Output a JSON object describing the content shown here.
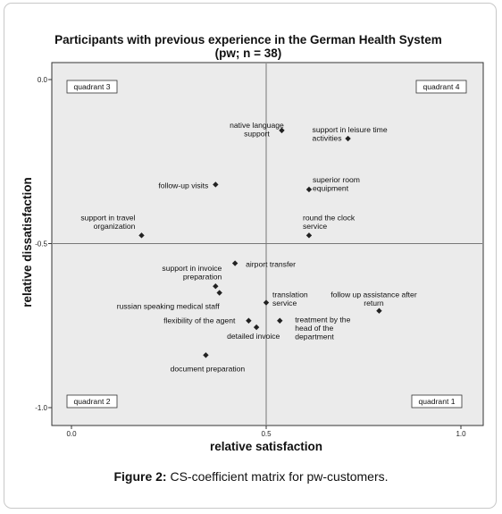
{
  "caption": {
    "label": "Figure 2:",
    "text": "CS-coefficient matrix for pw-customers."
  },
  "chart_data": {
    "type": "scatter",
    "title": "Participants with previous experience in the German Health System",
    "subtitle": "(pw; n = 38)",
    "xlabel": "relative satisfaction",
    "ylabel": "relative dissatisfaction",
    "xlim": [
      0.0,
      1.0
    ],
    "ylim": [
      0.0,
      -1.0
    ],
    "x_ticks": [
      "0.0",
      "0.5",
      "1.0"
    ],
    "y_ticks": [
      "0.0",
      "-0.5",
      "-1.0"
    ],
    "reference_lines": {
      "x": 0.5,
      "y": -0.5
    },
    "grid": false,
    "quadrants": [
      "quadrant 3",
      "quadrant 4",
      "quadrant 2",
      "quadrant 1"
    ],
    "points": [
      {
        "label": [
          "native language",
          "support"
        ],
        "x": 0.54,
        "y": -0.155
      },
      {
        "label": [
          "support in leisure time",
          "activities"
        ],
        "x": 0.71,
        "y": -0.18
      },
      {
        "label": [
          "follow-up visits"
        ],
        "x": 0.37,
        "y": -0.32
      },
      {
        "label": [
          "superior room",
          "equipment"
        ],
        "x": 0.61,
        "y": -0.335
      },
      {
        "label": [
          "support in travel",
          "organization"
        ],
        "x": 0.18,
        "y": -0.475
      },
      {
        "label": [
          "round the clock",
          "service"
        ],
        "x": 0.61,
        "y": -0.475
      },
      {
        "label": [
          "airport transfer"
        ],
        "x": 0.42,
        "y": -0.56
      },
      {
        "label": [
          "support in invoice",
          "preparation"
        ],
        "x": 0.37,
        "y": -0.63
      },
      {
        "label": [
          "russian speaking medical staff"
        ],
        "x": 0.38,
        "y": -0.65
      },
      {
        "label": [
          "translation",
          "service"
        ],
        "x": 0.5,
        "y": -0.68
      },
      {
        "label": [
          "follow up assistance after",
          "return"
        ],
        "x": 0.79,
        "y": -0.705
      },
      {
        "label": [
          "flexibility of the agent"
        ],
        "x": 0.455,
        "y": -0.735
      },
      {
        "label": [
          "treatment by the",
          "head of the",
          "department"
        ],
        "x": 0.535,
        "y": -0.735
      },
      {
        "label": [
          "detailed invoice"
        ],
        "x": 0.475,
        "y": -0.755
      },
      {
        "label": [
          "document preparation"
        ],
        "x": 0.345,
        "y": -0.84
      }
    ]
  }
}
